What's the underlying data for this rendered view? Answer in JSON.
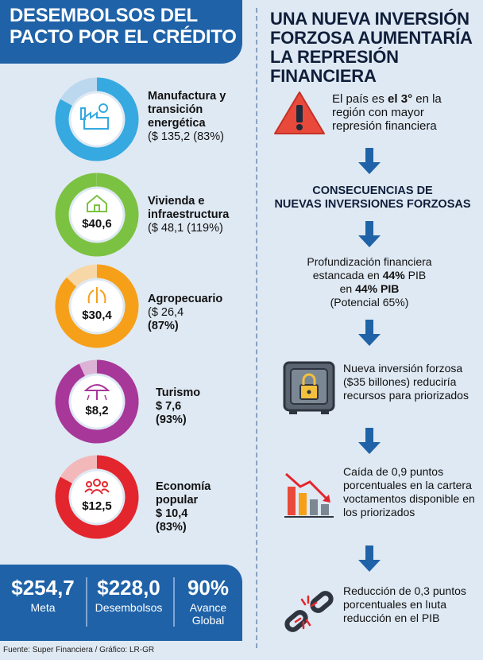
{
  "left": {
    "title": "DESEMBOLSOS DEL PACTO POR EL CRÉDITO"
  },
  "right": {
    "title": "UNA NUEVA INVERSIÓN FORZOSA AUMENTARÍA LA REPRESIÓN FINANCIERA",
    "step1_a": "El país es ",
    "step1_b": "el 3°",
    "step1_c": " en la región con mayor represión financiera",
    "consequences_1": "CONSECUENCIAS DE",
    "consequences_2": "NUEVAS INVERSIONES FORZOSAS",
    "step2_l1": "Profundización financiera",
    "step2_l2a": "estancada en ",
    "step2_l2b": "44%",
    "step2_l2c": " PIB",
    "step2_l3a": "en ",
    "step2_l3b": "44% PIB",
    "step2_l4": "(Potencial 65%)",
    "step3": "Nueva inversión forzosa ($35 billones) reduciría recursos para priorizados",
    "step4": "Caída de 0,9 puntos porcentuales en la cartera voctamentos disponible en los priorizados",
    "step5": "Reducción de 0,3 puntos porcentuales en lıuta reducción en el PIB"
  },
  "chart_data": {
    "type": "donut",
    "series": [
      {
        "label_l1": "Manufactura y",
        "label_l2": "transición",
        "label_l3": "energética",
        "detail": "($ 135,2 (83%)",
        "center": "",
        "pct": 83,
        "color": "#35a9e0",
        "track": "#bcd8ef",
        "icon": "factory-icon"
      },
      {
        "label_l1": "Vivienda e",
        "label_l2": "infraestructura",
        "label_l3": "",
        "detail": "($ 48,1 (119%)",
        "center": "$40,6",
        "pct": 100,
        "color": "#7cc242",
        "track": "#c9e4b0",
        "icon": "house-icon"
      },
      {
        "label_l1": "Agropecuario",
        "label_l2": "",
        "label_l3": "",
        "detail": "($ 26,4",
        "detail2": "(87%)",
        "center": "$30,4",
        "pct": 87,
        "color": "#f6a01a",
        "track": "#f8d7a6",
        "icon": "wheat-icon"
      },
      {
        "label_l1": "Turismo",
        "label_l2": "",
        "label_l3": "",
        "detail": "$ 7,6",
        "detail2": "(93%)",
        "center": "$8,2",
        "pct": 93,
        "color": "#a8379a",
        "track": "#dcb3d6",
        "icon": "umbrella-icon"
      },
      {
        "label_l1": "Economía",
        "label_l2": "popular",
        "label_l3": "",
        "detail": "$ 10,4",
        "detail2": "(83%)",
        "center": "$12,5",
        "pct": 83,
        "color": "#e3262e",
        "track": "#f3b8ba",
        "icon": "people-icon"
      }
    ]
  },
  "totals": {
    "meta_value": "$254,7",
    "meta_label": "Meta",
    "desem_value": "$228,0",
    "desem_label": "Desembolsos",
    "avance_value": "90%",
    "avance_label_1": "Avance",
    "avance_label_2": "Global"
  },
  "source": "Fuente: Super Financiera / Gráfico: LR-GR"
}
